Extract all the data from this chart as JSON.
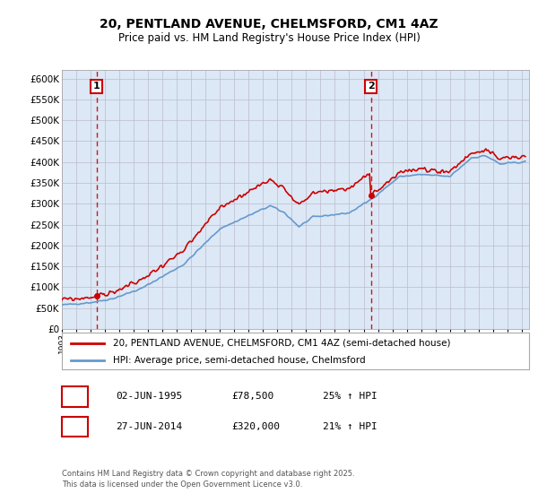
{
  "title": "20, PENTLAND AVENUE, CHELMSFORD, CM1 4AZ",
  "subtitle": "Price paid vs. HM Land Registry's House Price Index (HPI)",
  "legend_line1": "20, PENTLAND AVENUE, CHELMSFORD, CM1 4AZ (semi-detached house)",
  "legend_line2": "HPI: Average price, semi-detached house, Chelmsford",
  "annotation1_label": "1",
  "annotation1_date": "02-JUN-1995",
  "annotation1_price": "£78,500",
  "annotation1_hpi": "25% ↑ HPI",
  "annotation1_year": 1995.42,
  "annotation1_value": 78500,
  "annotation2_label": "2",
  "annotation2_date": "27-JUN-2014",
  "annotation2_price": "£320,000",
  "annotation2_hpi": "21% ↑ HPI",
  "annotation2_year": 2014.5,
  "annotation2_value": 320000,
  "footer": "Contains HM Land Registry data © Crown copyright and database right 2025.\nThis data is licensed under the Open Government Licence v3.0.",
  "price_color": "#cc0000",
  "hpi_color": "#6699cc",
  "background_color": "#ffffff",
  "plot_bg_color": "#dce8f5",
  "grid_color": "#bbbbcc",
  "ylim": [
    0,
    620000
  ],
  "yticks": [
    0,
    50000,
    100000,
    150000,
    200000,
    250000,
    300000,
    350000,
    400000,
    450000,
    500000,
    550000,
    600000
  ],
  "ytick_labels": [
    "£0",
    "£50K",
    "£100K",
    "£150K",
    "£200K",
    "£250K",
    "£300K",
    "£350K",
    "£400K",
    "£450K",
    "£500K",
    "£550K",
    "£600K"
  ],
  "xlim_start": 1993.0,
  "xlim_end": 2025.5
}
